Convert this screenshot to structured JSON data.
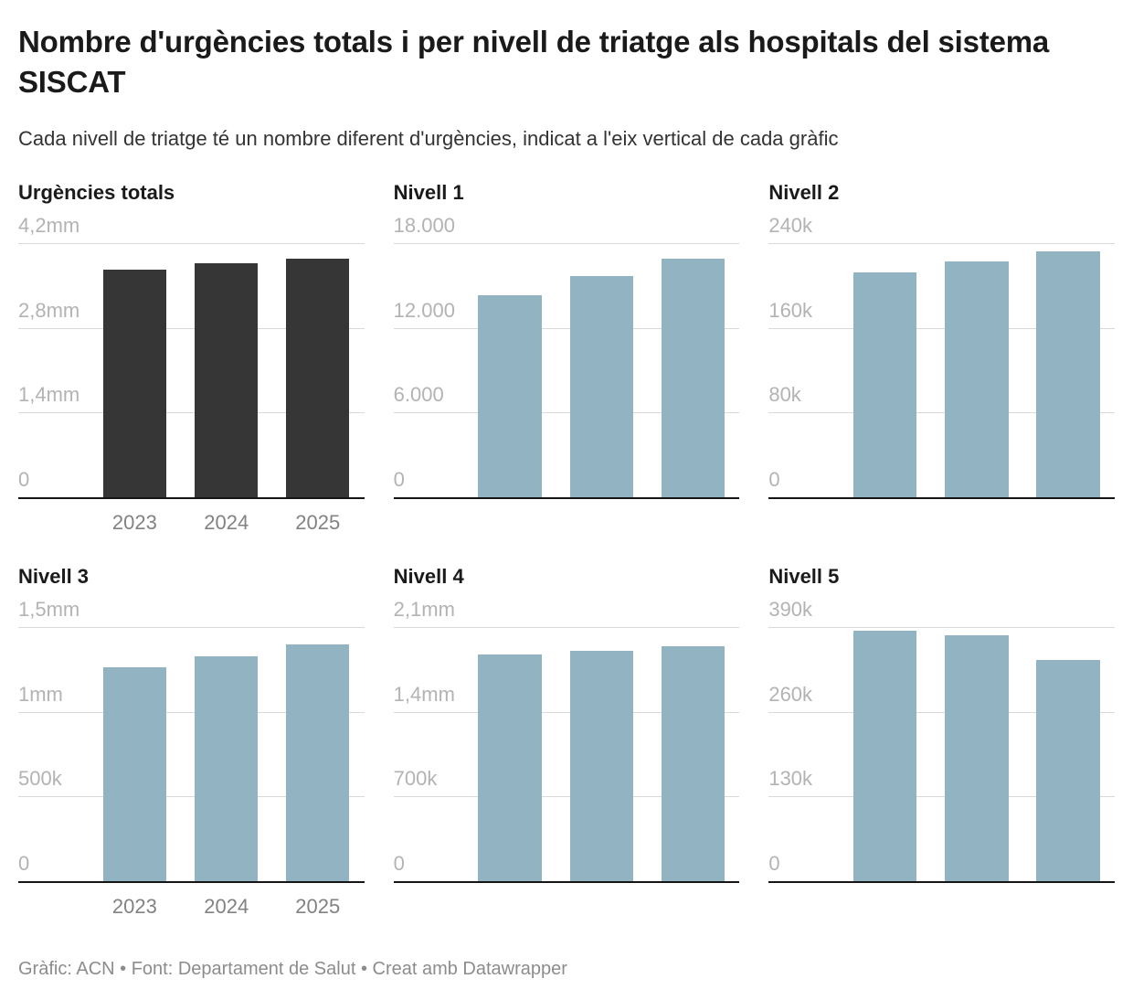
{
  "header": {
    "title": "Nombre d'urgències totals i per nivell de triatge als hospitals del sistema SISCAT",
    "subtitle": "Cada nivell de triatge té un nombre diferent d'urgències, indicat a l'eix vertical de cada gràfic"
  },
  "footer": {
    "text": "Gràfic: ACN • Font: Departament de Salut • Creat amb Datawrapper"
  },
  "colors": {
    "dark_bar": "#363636",
    "light_blue_bar": "#92b4c2",
    "gridline": "#d9d9d9",
    "axis_line": "#151515",
    "tick_label": "#b3b3b3",
    "year_label": "#828282",
    "title_text": "#1a1a1a",
    "subtitle_text": "#333333",
    "footer_text": "#8c8c8c"
  },
  "chart_data": [
    {
      "type": "bar",
      "title": "Urgències totals",
      "categories": [
        "2023",
        "2024",
        "2025"
      ],
      "values": [
        3760000,
        3870000,
        3940000
      ],
      "ylim": [
        0,
        4200000
      ],
      "yticks": [
        "4,2mm",
        "2,8mm",
        "1,4mm",
        "0"
      ],
      "bar_color": "#363636",
      "show_x_labels": true,
      "grid": true,
      "legend": "none"
    },
    {
      "type": "bar",
      "title": "Nivell 1",
      "categories": [
        "2023",
        "2024",
        "2025"
      ],
      "values": [
        14300,
        15700,
        16900
      ],
      "ylim": [
        0,
        18000
      ],
      "yticks": [
        "18.000",
        "12.000",
        "6.000",
        "0"
      ],
      "bar_color": "#92b4c2",
      "show_x_labels": false,
      "grid": true,
      "legend": "none"
    },
    {
      "type": "bar",
      "title": "Nivell 2",
      "categories": [
        "2023",
        "2024",
        "2025"
      ],
      "values": [
        212000,
        223000,
        232000
      ],
      "ylim": [
        0,
        240000
      ],
      "yticks": [
        "240k",
        "160k",
        "80k",
        "0"
      ],
      "bar_color": "#92b4c2",
      "show_x_labels": false,
      "grid": true,
      "legend": "none"
    },
    {
      "type": "bar",
      "title": "Nivell 3",
      "categories": [
        "2023",
        "2024",
        "2025"
      ],
      "values": [
        1260000,
        1330000,
        1400000
      ],
      "ylim": [
        0,
        1500000
      ],
      "yticks": [
        "1,5mm",
        "1mm",
        "500k",
        "0"
      ],
      "bar_color": "#92b4c2",
      "show_x_labels": true,
      "grid": true,
      "legend": "none"
    },
    {
      "type": "bar",
      "title": "Nivell 4",
      "categories": [
        "2023",
        "2024",
        "2025"
      ],
      "values": [
        1870000,
        1900000,
        1940000
      ],
      "ylim": [
        0,
        2100000
      ],
      "yticks": [
        "2,1mm",
        "1,4mm",
        "700k",
        "0"
      ],
      "bar_color": "#92b4c2",
      "show_x_labels": false,
      "grid": true,
      "legend": "none"
    },
    {
      "type": "bar",
      "title": "Nivell 5",
      "categories": [
        "2023",
        "2024",
        "2025"
      ],
      "values": [
        384000,
        377000,
        340000
      ],
      "ylim": [
        0,
        390000
      ],
      "yticks": [
        "390k",
        "260k",
        "130k",
        "0"
      ],
      "bar_color": "#92b4c2",
      "show_x_labels": false,
      "grid": true,
      "legend": "none"
    }
  ]
}
